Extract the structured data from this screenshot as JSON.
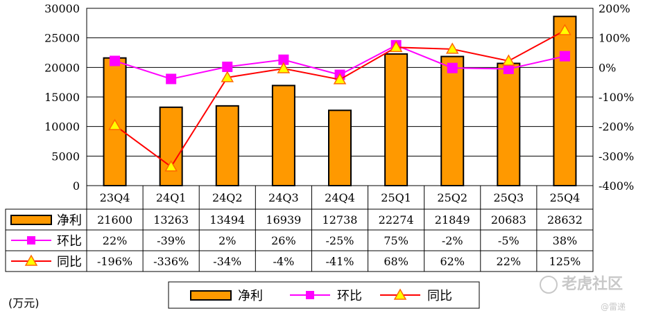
{
  "chart_data": {
    "type": "bar",
    "categories": [
      "23Q4",
      "24Q1",
      "24Q2",
      "24Q3",
      "24Q4",
      "25Q1",
      "25Q2",
      "25Q3",
      "25Q4"
    ],
    "series": [
      {
        "name": "净利",
        "type": "bar",
        "axis": "left",
        "color": "#ff9900",
        "values": [
          21600,
          13263,
          13494,
          16939,
          12738,
          22274,
          21849,
          20683,
          28632
        ],
        "labels": [
          "21600",
          "13263",
          "13494",
          "16939",
          "12738",
          "22274",
          "21849",
          "20683",
          "28632"
        ]
      },
      {
        "name": "环比",
        "type": "line",
        "axis": "right",
        "color": "#ff00ff",
        "marker": "square",
        "values": [
          22,
          -39,
          2,
          26,
          -25,
          75,
          -2,
          -5,
          38
        ],
        "labels": [
          "22%",
          "-39%",
          "2%",
          "26%",
          "-25%",
          "75%",
          "-2%",
          "-5%",
          "38%"
        ]
      },
      {
        "name": "同比",
        "type": "line",
        "axis": "right",
        "color": "#ff0000",
        "marker": "triangle",
        "marker_color": "#ffff00",
        "values": [
          -196,
          -336,
          -34,
          -4,
          -41,
          68,
          62,
          22,
          125
        ],
        "labels": [
          "-196%",
          "-336%",
          "-34%",
          "-4%",
          "-41%",
          "68%",
          "62%",
          "22%",
          "125%"
        ]
      }
    ],
    "y_left": {
      "ylim": [
        0,
        30000
      ],
      "ticks": [
        0,
        5000,
        10000,
        15000,
        20000,
        25000,
        30000
      ],
      "tick_labels": [
        "0",
        "5000",
        "10000",
        "15000",
        "20000",
        "25000",
        "30000"
      ]
    },
    "y_right": {
      "ylim": [
        -400,
        200
      ],
      "ticks": [
        -400,
        -300,
        -200,
        -100,
        0,
        100,
        200
      ],
      "tick_labels": [
        "-400%",
        "-300%",
        "-200%",
        "-100%",
        "0%",
        "100%",
        "200%"
      ]
    },
    "unit_label": "(万元)",
    "legend": [
      "净利",
      "环比",
      "同比"
    ],
    "legend_position": "bottom",
    "data_table": true
  },
  "watermark": "老虎社区",
  "watermark_sub": "@雷递"
}
